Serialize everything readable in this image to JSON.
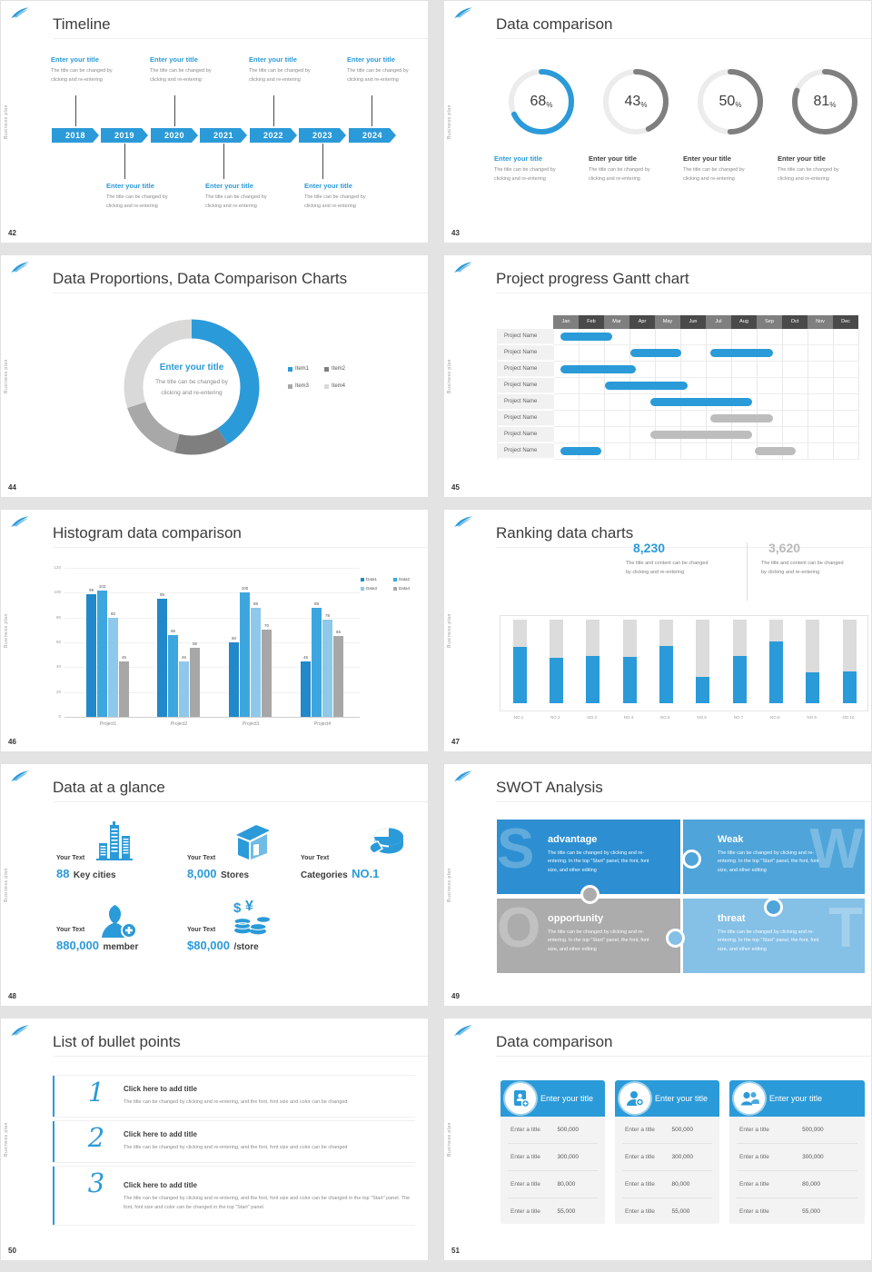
{
  "brand": {
    "vertical_text": "Business plan"
  },
  "colors": {
    "accent_blue": "#2B9AD8",
    "dark_gray": "#4a4a4a",
    "mid_gray": "#7f7f7f",
    "light_gray": "#d9d9d9"
  },
  "slides": {
    "timeline": {
      "page": "42",
      "title": "Timeline",
      "years": [
        "2018",
        "2019",
        "2020",
        "2021",
        "2022",
        "2023",
        "2024"
      ],
      "item_title": "Enter your title",
      "item_body1": "The title can be changed by",
      "item_body2": "clicking and re-entering"
    },
    "donuts": {
      "page": "43",
      "title": "Data comparison",
      "item_title": "Enter your title",
      "item_body1": "The title can be changed by",
      "item_body2": "clicking and re-entering"
    },
    "proportions": {
      "page": "44",
      "title": "Data Proportions, Data Comparison Charts",
      "center_title": "Enter your title",
      "center_body1": "The title can be changed by",
      "center_body2": "clicking and re-entering"
    },
    "gantt": {
      "page": "45",
      "title": "Project progress Gantt chart"
    },
    "histogram": {
      "page": "46",
      "title": "Histogram data comparison"
    },
    "ranking": {
      "page": "47",
      "title": "Ranking data charts",
      "caption1": "The title and content can be changed",
      "caption2": "by clicking and re-entering"
    },
    "glance": {
      "page": "48",
      "title": "Data at a glance",
      "label": "Your Text",
      "stats": [
        {
          "value": "88",
          "unit": "Key cities"
        },
        {
          "value": "8,000",
          "unit": "Stores"
        },
        {
          "prefix": "Categories",
          "value": "NO.1"
        },
        {
          "value": "880,000",
          "unit": "member"
        },
        {
          "value": "$80,000",
          "unit": "/store"
        }
      ]
    },
    "swot": {
      "page": "49",
      "title": "SWOT Analysis",
      "body": "The title can be changed by clicking and re-entering. In the top \"Start\" panel, the font, font size, and other editing",
      "quads": [
        {
          "letter": "S",
          "heading": "advantage"
        },
        {
          "letter": "W",
          "heading": "Weak"
        },
        {
          "letter": "O",
          "heading": "opportunity"
        },
        {
          "letter": "T",
          "heading": "threat"
        }
      ]
    },
    "bullets": {
      "page": "50",
      "title": "List of bullet points",
      "items": [
        {
          "num": "1",
          "heading": "Click here to add title",
          "body": "The title can be changed by clicking and re-entering, and the font, font size and color can be changed"
        },
        {
          "num": "2",
          "heading": "Click here to add title",
          "body": "The title can be changed by clicking and re-entering, and the font, font size and color can be changed"
        },
        {
          "num": "3",
          "heading": "Click here to add title",
          "body": "The title can be changed by clicking and re-entering, and the font, font size and color can be changed in the top \"Start\" panel. The font, font size and color can be changed in the top \"Start\" panel."
        }
      ]
    },
    "comparison": {
      "page": "51",
      "title": "Data comparison",
      "card_title": "Enter your title",
      "rows": [
        {
          "label": "Enter a title",
          "value": "500,000"
        },
        {
          "label": "Enter a title",
          "value": "300,000"
        },
        {
          "label": "Enter a title",
          "value": "80,000"
        },
        {
          "label": "Enter a title",
          "value": "55,000"
        }
      ]
    }
  },
  "chart_data": [
    {
      "type": "donut-gauges",
      "slide": 43,
      "values": [
        68,
        43,
        50,
        81
      ],
      "unit": "%",
      "active_color": "#2B9AD8",
      "inactive_color": "#7f7f7f",
      "track_color": "#ececec"
    },
    {
      "type": "pie",
      "slide": 44,
      "legend": [
        "Item1",
        "Item2",
        "Item3",
        "Item4"
      ],
      "values": [
        41,
        13,
        16,
        30
      ],
      "colors": [
        "#2B9AD8",
        "#7f7f7f",
        "#a8a8a8",
        "#d9d9d9"
      ],
      "legend_position": "right"
    },
    {
      "type": "gantt",
      "slide": 45,
      "row_label": "Project Name",
      "months": [
        "Jan",
        "Feb",
        "Mar",
        "Apr",
        "May",
        "Jun",
        "Jul",
        "Aug",
        "Sep",
        "Oct",
        "Nov",
        "Dec"
      ],
      "rows": [
        [
          [
            0.25,
            2.3,
            "blue"
          ]
        ],
        [
          [
            3.0,
            5.0,
            "blue"
          ],
          [
            6.15,
            8.6,
            "blue"
          ]
        ],
        [
          [
            0.25,
            3.2,
            "blue"
          ]
        ],
        [
          [
            2.0,
            5.25,
            "blue"
          ]
        ],
        [
          [
            3.8,
            7.8,
            "blue"
          ]
        ],
        [
          [
            6.15,
            8.6,
            "gray"
          ]
        ],
        [
          [
            3.8,
            7.8,
            "gray"
          ]
        ],
        [
          [
            0.25,
            1.85,
            "blue"
          ],
          [
            7.9,
            9.5,
            "gray"
          ]
        ]
      ],
      "bar_colors": {
        "blue": "#2B9AD8",
        "gray": "#bdbdbd"
      }
    },
    {
      "type": "bar",
      "slide": 46,
      "categories": [
        "Project1",
        "Project2",
        "Project3",
        "Project4"
      ],
      "series": [
        {
          "name": "Data1",
          "color": "#2188C9",
          "values": [
            99,
            95,
            60,
            45
          ]
        },
        {
          "name": "Data2",
          "color": "#3EA6DE",
          "values": [
            102,
            66,
            100,
            88
          ]
        },
        {
          "name": "Data3",
          "color": "#8EC8EA",
          "values": [
            80,
            45,
            88,
            78
          ]
        },
        {
          "name": "Data4",
          "color": "#A7A7A7",
          "values": [
            45,
            56,
            70,
            65
          ]
        }
      ],
      "ylim": [
        0,
        120
      ],
      "yticks": [
        0,
        20,
        40,
        60,
        80,
        100,
        120
      ],
      "grid": true,
      "legend_position": "top-right"
    },
    {
      "type": "bar",
      "slide": 47,
      "categories": [
        "NO.1",
        "NO.2",
        "NO.3",
        "NO.4",
        "NO.5",
        "NO.6",
        "NO.7",
        "NO.8",
        "NO.9",
        "NO.10"
      ],
      "values_pct": [
        67,
        54,
        56,
        55,
        69,
        32,
        56,
        74,
        37,
        38
      ],
      "stats": [
        "8,230",
        "3,620"
      ],
      "bar_color": "#2B9AD8",
      "track_color": "#dcdcdc"
    }
  ]
}
